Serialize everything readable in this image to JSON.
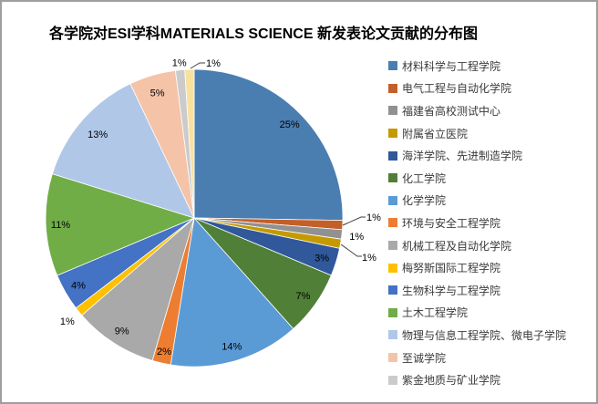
{
  "title": "各学院对ESI学科MATERIALS SCIENCE 新发表论文贡献的分布图",
  "chart_data": {
    "type": "pie",
    "title": "各学院对ESI学科MATERIALS SCIENCE 新发表论文贡献的分布图",
    "legend_position": "right",
    "start_angle_deg": 0,
    "direction": "clockwise",
    "data_labels": "percent",
    "slices": [
      {
        "label": "材料科学与工程学院",
        "value": 25,
        "percent_label": "25%",
        "color": "#4A7EB0",
        "in_legend": true
      },
      {
        "label": "电气工程与自动化学院",
        "value": 1,
        "percent_label": "1%",
        "color": "#C35F28",
        "in_legend": true
      },
      {
        "label": "福建省高校测试中心",
        "value": 1,
        "percent_label": "1%",
        "color": "#919191",
        "in_legend": true
      },
      {
        "label": "附属省立医院",
        "value": 1,
        "percent_label": "1%",
        "color": "#C49A00",
        "in_legend": true
      },
      {
        "label": "海洋学院、先进制造学院",
        "value": 3,
        "percent_label": "3%",
        "color": "#30589B",
        "in_legend": true
      },
      {
        "label": "化工学院",
        "value": 7,
        "percent_label": "7%",
        "color": "#507F38",
        "in_legend": true
      },
      {
        "label": "化学学院",
        "value": 14,
        "percent_label": "14%",
        "color": "#5B9BD5",
        "in_legend": true
      },
      {
        "label": "环境与安全工程学院",
        "value": 2,
        "percent_label": "2%",
        "color": "#ED7D31",
        "in_legend": true
      },
      {
        "label": "机械工程及自动化学院",
        "value": 9,
        "percent_label": "9%",
        "color": "#A9A9A9",
        "in_legend": true
      },
      {
        "label": "梅努斯国际工程学院",
        "value": 1,
        "percent_label": "1%",
        "color": "#FFC000",
        "in_legend": true
      },
      {
        "label": "生物科学与工程学院",
        "value": 4,
        "percent_label": "4%",
        "color": "#4472C4",
        "in_legend": true
      },
      {
        "label": "土木工程学院",
        "value": 11,
        "percent_label": "11%",
        "color": "#70AD47",
        "in_legend": true
      },
      {
        "label": "物理与信息工程学院、微电子学院",
        "value": 13,
        "percent_label": "13%",
        "color": "#B0C7E8",
        "in_legend": true
      },
      {
        "label": "至诚学院",
        "value": 5,
        "percent_label": "5%",
        "color": "#F4C3A8",
        "in_legend": true
      },
      {
        "label": "紫金地质与矿业学院",
        "value": 1,
        "percent_label": "1%",
        "color": "#CBCBCB",
        "in_legend": true
      },
      {
        "label": "",
        "value": 1,
        "percent_label": "1%",
        "color": "#F8E09F",
        "in_legend": false
      }
    ]
  }
}
